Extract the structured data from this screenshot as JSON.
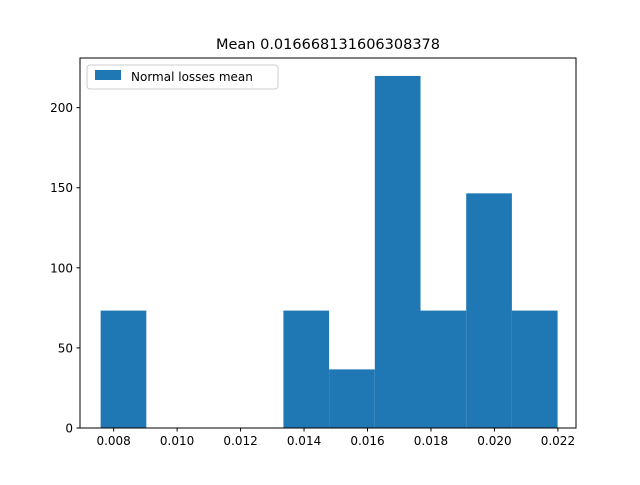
{
  "chart_data": {
    "type": "bar",
    "title": "Mean 0.016668131606308378",
    "xlabel": "",
    "ylabel": "",
    "xlim": [
      0.00694,
      0.02257
    ],
    "ylim": [
      0,
      231
    ],
    "xticks": [
      0.008,
      0.01,
      0.012,
      0.014,
      0.016,
      0.018,
      0.02,
      0.022
    ],
    "xtick_labels": [
      "0.008",
      "0.010",
      "0.012",
      "0.014",
      "0.016",
      "0.018",
      "0.020",
      "0.022"
    ],
    "yticks": [
      0,
      50,
      100,
      150,
      200
    ],
    "ytick_labels": [
      "0",
      "50",
      "100",
      "150",
      "200"
    ],
    "grid": false,
    "legend_position": "upper-left",
    "series": [
      {
        "name": "Normal losses mean",
        "color": "#1f77b4",
        "bin_edges": [
          0.00759,
          0.00903,
          0.01047,
          0.01191,
          0.01335,
          0.01479,
          0.01623,
          0.01767,
          0.01911,
          0.02055,
          0.02199
        ],
        "values": [
          73.3,
          0,
          0,
          0,
          73.3,
          36.6,
          219.8,
          73.3,
          146.5,
          73.3
        ]
      }
    ]
  }
}
